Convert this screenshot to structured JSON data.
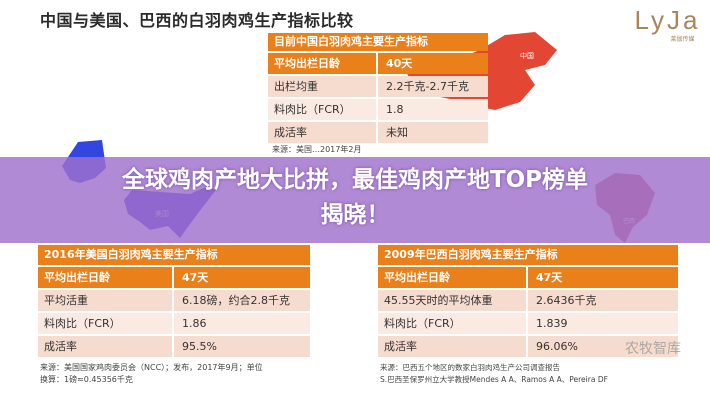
{
  "title": "中国与美国、巴西的白羽肉鸡生产指标比较",
  "logo": {
    "text": "LyJa",
    "subtitle": "莱伽传媒",
    "color": "#a8865a"
  },
  "maps": {
    "china": {
      "label": "中国",
      "color": "#e0331e"
    },
    "usa": {
      "label": "美国",
      "color": "#3a3fd0"
    },
    "brazil": {
      "label": "巴西",
      "color": "#c0504d"
    }
  },
  "headline": {
    "line1": "全球鸡肉产地大比拼，最佳鸡肉产地TOP榜单",
    "line2": "揭晓！"
  },
  "china_table": {
    "header": "目前中国白羽肉鸡主要生产指标",
    "rows": [
      [
        "平均出栏日龄",
        "40天"
      ],
      [
        "出栏均重",
        "2.2千克-2.7千克"
      ],
      [
        "料肉比（FCR）",
        "1.8"
      ],
      [
        "成活率",
        "未知"
      ]
    ],
    "source": "来源：美国…2017年2月"
  },
  "usa_table": {
    "header": "2016年美国白羽肉鸡主要生产指标",
    "rows": [
      [
        "平均出栏日龄",
        "47天"
      ],
      [
        "平均活重",
        "6.18磅，约合2.8千克"
      ],
      [
        "料肉比（FCR）",
        "1.86"
      ],
      [
        "成活率",
        "95.5%"
      ]
    ],
    "source1": "来源：美国国家鸡肉委员会（NCC）；发布，2017年9月；单位",
    "source2": "换算：1磅≈0.45356千克"
  },
  "brazil_table": {
    "header": "2009年巴西白羽肉鸡主要生产指标",
    "rows": [
      [
        "平均出栏日龄",
        "47天"
      ],
      [
        "45.55天时的平均体重",
        "2.6436千克"
      ],
      [
        "料肉比（FCR）",
        "1.839"
      ],
      [
        "成活率",
        "96.06%"
      ]
    ],
    "source1": "来源：巴西五个地区的数家白羽肉鸡生产公司调查报告",
    "source2": "S.巴西圣保罗州立大学教授Mendes A A、Ramos A A、Pereira DF"
  },
  "watermark": "农牧智库",
  "colors": {
    "orange": "#e9801a",
    "band": "#a070cd"
  }
}
